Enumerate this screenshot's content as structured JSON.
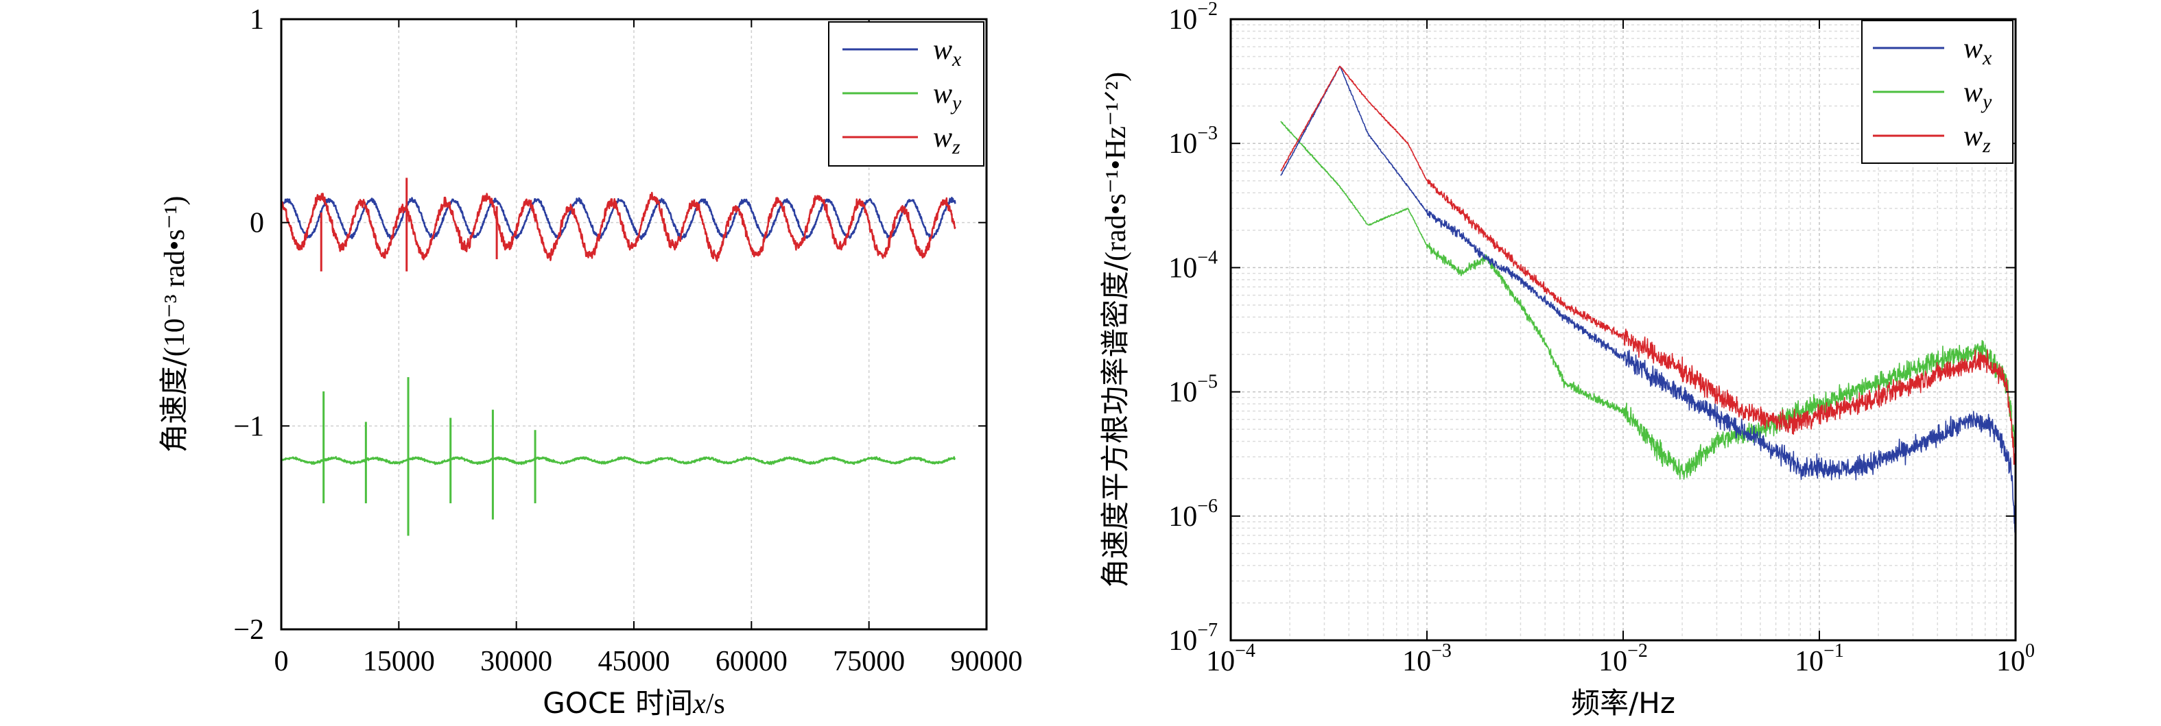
{
  "chart_data": [
    {
      "type": "line",
      "xlabel_prefix": "GOCE 时间",
      "xlabel_var": "x",
      "xlabel_suffix": "/s",
      "ylabel_main": "角速度/",
      "ylabel_unit": "(10⁻³ rad•s⁻¹)",
      "xlim": [
        0,
        90000
      ],
      "ylim": [
        -2,
        1
      ],
      "xticks": [
        0,
        15000,
        30000,
        45000,
        60000,
        75000,
        90000
      ],
      "xtick_labels": [
        "0",
        "15000",
        "30000",
        "45000",
        "60000",
        "75000",
        "90000"
      ],
      "yticks": [
        1,
        0,
        -1,
        -2
      ],
      "ytick_labels": [
        "1",
        "0",
        "−1",
        "−2"
      ],
      "grid": true,
      "legend_position": "top-right",
      "series": [
        {
          "name": "w",
          "sub": "x",
          "color": "#2b3fa0",
          "description": "sinusoidal oscillation around 0 with period about 5300 s",
          "x_range": [
            0,
            86000
          ],
          "mean": 0.02,
          "amplitude": 0.09,
          "period": 5300
        },
        {
          "name": "w",
          "sub": "y",
          "color": "#4cbf3f",
          "description": "near-constant baseline with spikes",
          "x_range": [
            0,
            86000
          ],
          "mean": -1.17,
          "spikes": [
            {
              "x": 5400,
              "high": -0.83,
              "low": -1.38
            },
            {
              "x": 10800,
              "high": -0.98,
              "low": -1.38
            },
            {
              "x": 16200,
              "high": -0.76,
              "low": -1.54
            },
            {
              "x": 21600,
              "high": -0.96,
              "low": -1.38
            },
            {
              "x": 27000,
              "high": -0.92,
              "low": -1.46
            },
            {
              "x": 32400,
              "high": -1.02,
              "low": -1.38
            }
          ]
        },
        {
          "name": "w",
          "sub": "z",
          "color": "#d7262b",
          "description": "oscillation around -0.02 with period about 5300 s and larger noise",
          "x_range": [
            0,
            86000
          ],
          "mean": -0.02,
          "amplitude": 0.12,
          "period": 5300,
          "spikes": [
            {
              "x": 5100,
              "high": 0.05,
              "low": -0.24
            },
            {
              "x": 16000,
              "high": 0.22,
              "low": -0.24
            },
            {
              "x": 27500,
              "high": 0.08,
              "low": -0.18
            }
          ]
        }
      ]
    },
    {
      "type": "line",
      "log_x": true,
      "log_y": true,
      "xlabel": "频率/Hz",
      "ylabel_main": "角速度平方根功率谱密度/",
      "ylabel_unit": "(rad•s⁻¹•Hz⁻¹ᐟ²)",
      "xlim": [
        0.0001,
        1
      ],
      "ylim": [
        1e-07,
        0.01
      ],
      "xtick_exponents": [
        -4,
        -3,
        -2,
        -1,
        0
      ],
      "ytick_exponents": [
        -2,
        -3,
        -4,
        -5,
        -6,
        -7
      ],
      "grid": true,
      "legend_position": "top-right",
      "series": [
        {
          "name": "w",
          "sub": "x",
          "color": "#2b3fa0",
          "points": [
            [
              0.00018,
              0.00055
            ],
            [
              0.00036,
              0.0042
            ],
            [
              0.0005,
              0.0012
            ],
            [
              0.0008,
              0.00045
            ],
            [
              0.001,
              0.00028
            ],
            [
              0.0015,
              0.00018
            ],
            [
              0.002,
              0.00012
            ],
            [
              0.003,
              8e-05
            ],
            [
              0.005,
              4e-05
            ],
            [
              0.01,
              1.9e-05
            ],
            [
              0.02,
              9.5e-06
            ],
            [
              0.05,
              4e-06
            ],
            [
              0.08,
              2.5e-06
            ],
            [
              0.15,
              2.4e-06
            ],
            [
              0.3,
              3.5e-06
            ],
            [
              0.6,
              6e-06
            ],
            [
              0.8,
              5e-06
            ],
            [
              0.95,
              2.5e-06
            ],
            [
              1.0,
              7e-07
            ]
          ]
        },
        {
          "name": "w",
          "sub": "y",
          "color": "#4cbf3f",
          "points": [
            [
              0.00018,
              0.0015
            ],
            [
              0.00036,
              0.00045
            ],
            [
              0.0005,
              0.00022
            ],
            [
              0.0008,
              0.0003
            ],
            [
              0.001,
              0.00015
            ],
            [
              0.0015,
              9e-05
            ],
            [
              0.002,
              0.00012
            ],
            [
              0.003,
              5e-05
            ],
            [
              0.004,
              2.5e-05
            ],
            [
              0.005,
              1.2e-05
            ],
            [
              0.007,
              9e-06
            ],
            [
              0.01,
              7e-06
            ],
            [
              0.015,
              3.5e-06
            ],
            [
              0.02,
              2.2e-06
            ],
            [
              0.03,
              4e-06
            ],
            [
              0.05,
              5e-06
            ],
            [
              0.1,
              8e-06
            ],
            [
              0.2,
              1.2e-05
            ],
            [
              0.4,
              1.8e-05
            ],
            [
              0.7,
              2.2e-05
            ],
            [
              0.9,
              1.2e-05
            ],
            [
              1.0,
              3.5e-06
            ]
          ]
        },
        {
          "name": "w",
          "sub": "z",
          "color": "#d7262b",
          "points": [
            [
              0.00018,
              0.0006
            ],
            [
              0.00036,
              0.0042
            ],
            [
              0.0005,
              0.0022
            ],
            [
              0.0008,
              0.001
            ],
            [
              0.001,
              0.0005
            ],
            [
              0.0015,
              0.00028
            ],
            [
              0.002,
              0.00018
            ],
            [
              0.003,
              0.0001
            ],
            [
              0.005,
              5e-05
            ],
            [
              0.01,
              2.8e-05
            ],
            [
              0.02,
              1.5e-05
            ],
            [
              0.04,
              7e-06
            ],
            [
              0.07,
              5.5e-06
            ],
            [
              0.1,
              6.5e-06
            ],
            [
              0.2,
              9e-06
            ],
            [
              0.4,
              1.4e-05
            ],
            [
              0.7,
              1.8e-05
            ],
            [
              0.9,
              1.2e-05
            ],
            [
              1.0,
              2.5e-06
            ]
          ]
        }
      ]
    }
  ]
}
